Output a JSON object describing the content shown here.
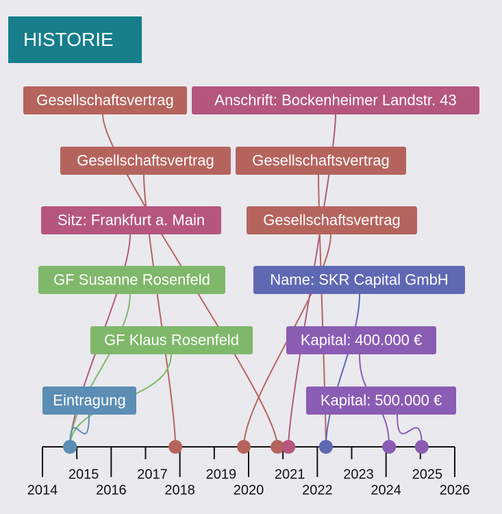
{
  "header": {
    "title": "HISTORIE"
  },
  "timeline": {
    "xlim": [
      2014,
      2026
    ],
    "xticks": [
      2014,
      2015,
      2016,
      2017,
      2018,
      2019,
      2020,
      2021,
      2022,
      2023,
      2024,
      2025,
      2026
    ],
    "events": [
      {
        "label": "Gesellschaftsvertrag",
        "date": 2020.84,
        "color": "#b5645d"
      },
      {
        "label": "Anschrift: Bockenheimer Landstr. 43",
        "date": 2021.16,
        "color": "#b5567f"
      },
      {
        "label": "Gesellschaftsvertrag",
        "date": 2017.87,
        "color": "#b5645d"
      },
      {
        "label": "Gesellschaftsvertrag",
        "date": 2022.25,
        "color": "#b5645d"
      },
      {
        "label": "Sitz: Frankfurt a. Main",
        "date": 2014.8,
        "color": "#b5567f"
      },
      {
        "label": "Gesellschaftsvertrag",
        "date": 2019.86,
        "color": "#b5645d"
      },
      {
        "label": "GF Susanne Rosenfeld",
        "date": 2014.8,
        "color": "#7fb86a"
      },
      {
        "label": "Name: SKR Capital GmbH",
        "date": 2022.25,
        "color": "#5e68b3"
      },
      {
        "label": "GF Klaus Rosenfeld",
        "date": 2014.8,
        "color": "#7fb86a"
      },
      {
        "label": "Kapital: 400.000 €",
        "date": 2024.09,
        "color": "#8a5cb3"
      },
      {
        "label": "Eintragung",
        "date": 2014.8,
        "color": "#5b8db5"
      },
      {
        "label": "Kapital: 500.000 €",
        "date": 2025.04,
        "color": "#8a5cb3"
      }
    ]
  }
}
